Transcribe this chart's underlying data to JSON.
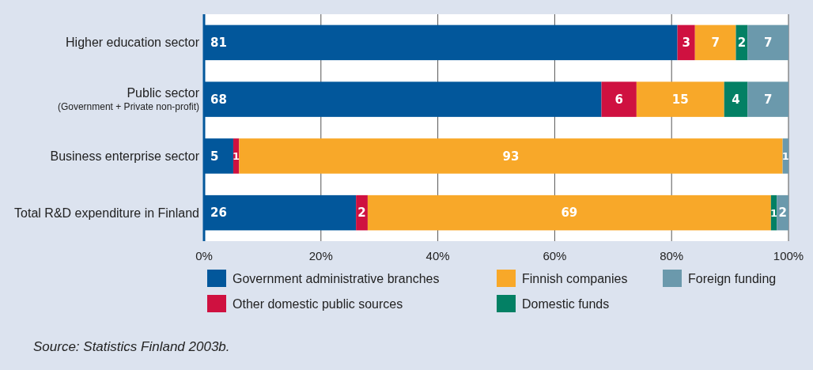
{
  "chart_data": {
    "type": "bar",
    "orientation": "horizontal",
    "stacked": true,
    "categories": [
      "Higher education sector",
      "Public sector\n(Government + Private non-profit)",
      "Business enterprise sector",
      "Total R&D expenditure in Finland"
    ],
    "series": [
      {
        "name": "Government administrative branches",
        "color": "#02579b",
        "values": [
          81,
          68,
          5,
          26
        ]
      },
      {
        "name": "Other domestic public sources",
        "color": "#cf1140",
        "values": [
          3,
          6,
          1,
          2
        ]
      },
      {
        "name": "Finnish companies",
        "color": "#f8a829",
        "values": [
          7,
          15,
          93,
          69
        ]
      },
      {
        "name": "Domestic funds",
        "color": "#038064",
        "values": [
          2,
          4,
          null,
          1
        ]
      },
      {
        "name": "Foreign funding",
        "color": "#6b99ac",
        "values": [
          7,
          7,
          1,
          2
        ]
      }
    ],
    "xlim": [
      0,
      100
    ],
    "xticks": [
      {
        "value": 0,
        "label": "0%"
      },
      {
        "value": 20,
        "label": "20%"
      },
      {
        "value": 40,
        "label": "40%"
      },
      {
        "value": 60,
        "label": "60%"
      },
      {
        "value": 80,
        "label": "80%"
      },
      {
        "value": 100,
        "label": "100%"
      }
    ],
    "grid": "x",
    "data_labels": true,
    "legend": "bottom",
    "annotations": [
      "Source: Statistics Finland 2003b."
    ]
  }
}
